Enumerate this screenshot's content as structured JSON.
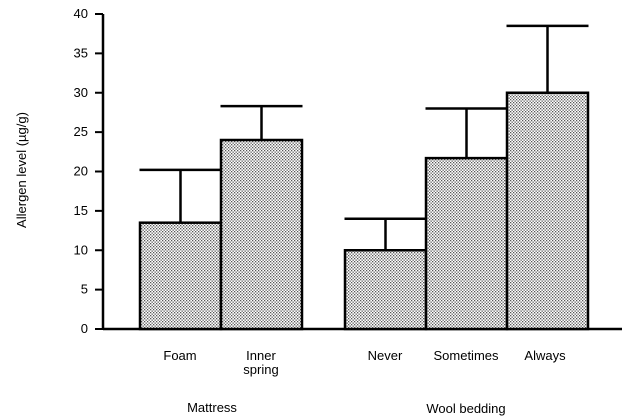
{
  "chart_data": {
    "type": "bar",
    "ylabel": "Allergen level (µg/g)",
    "ylim": [
      0,
      40
    ],
    "y_ticks": [
      "0",
      "5",
      "10",
      "15",
      "20",
      "25",
      "30",
      "35",
      "40"
    ],
    "grid": false,
    "groups": [
      {
        "name": "Mattress",
        "categories": [
          "Foam",
          "Inner spring"
        ]
      },
      {
        "name": "Wool bedding",
        "categories": [
          "Never",
          "Sometimes",
          "Always"
        ]
      }
    ],
    "categories": [
      "Foam",
      "Inner spring",
      "Never",
      "Sometimes",
      "Always"
    ],
    "category_lines": [
      [
        "Foam"
      ],
      [
        "Inner",
        "spring"
      ],
      [
        "Never"
      ],
      [
        "Sometimes"
      ],
      [
        "Always"
      ]
    ],
    "values": [
      13.5,
      24,
      10,
      21.7,
      30
    ],
    "error_upper": [
      20.2,
      28.3,
      14,
      28,
      38.5
    ],
    "bar_fill": "#c8c8c8"
  }
}
